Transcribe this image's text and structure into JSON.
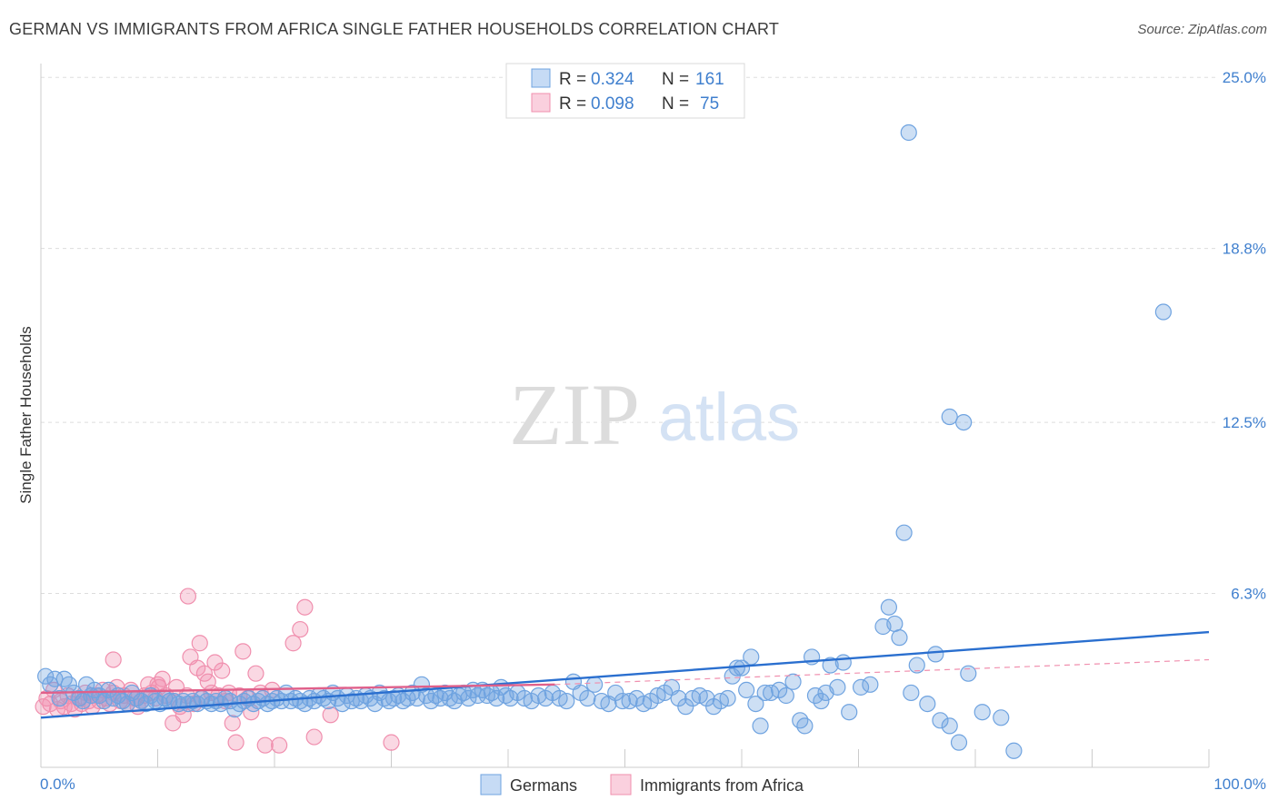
{
  "header": {
    "title": "GERMAN VS IMMIGRANTS FROM AFRICA SINGLE FATHER HOUSEHOLDS CORRELATION CHART",
    "source": "Source: ZipAtlas.com"
  },
  "colors": {
    "blue": "#6fa3e0",
    "blue_line": "#2a6fcf",
    "pink": "#f08fae",
    "pink_line": "#e0608a",
    "tick_text": "#3f7fce"
  },
  "chart_data": {
    "type": "scatter",
    "title": "GERMAN VS IMMIGRANTS FROM AFRICA SINGLE FATHER HOUSEHOLDS CORRELATION CHART",
    "xlabel": "",
    "ylabel": "Single Father Households",
    "xlim": [
      0,
      100
    ],
    "ylim": [
      0,
      25.5
    ],
    "x_tick_labels": [
      "0.0%",
      "100.0%"
    ],
    "y_ticks": [
      6.3,
      12.5,
      18.8,
      25.0
    ],
    "y_tick_labels": [
      "6.3%",
      "12.5%",
      "18.8%",
      "25.0%"
    ],
    "watermark": {
      "zip": "ZIP",
      "atlas": "atlas"
    },
    "legend": {
      "r_label": "R =",
      "n_label": "N =",
      "entries": [
        {
          "name": "Germans",
          "r": "0.324",
          "n": "161"
        },
        {
          "name": "Immigrants from Africa",
          "r": "0.098",
          "n": "75"
        }
      ]
    },
    "series": [
      {
        "name": "Germans",
        "trend": {
          "x": [
            0,
            100
          ],
          "y": [
            1.8,
            4.9
          ],
          "dashed": false
        },
        "points": [
          [
            0.4,
            3.3
          ],
          [
            0.8,
            3.0
          ],
          [
            1.2,
            3.2
          ],
          [
            1.6,
            2.5
          ],
          [
            2.0,
            3.2
          ],
          [
            2.4,
            3.0
          ],
          [
            2.8,
            2.7
          ],
          [
            3.3,
            2.5
          ],
          [
            3.6,
            2.4
          ],
          [
            3.9,
            3.0
          ],
          [
            4.3,
            2.6
          ],
          [
            4.6,
            2.8
          ],
          [
            5.0,
            2.6
          ],
          [
            5.4,
            2.4
          ],
          [
            5.8,
            2.8
          ],
          [
            6.2,
            2.5
          ],
          [
            6.6,
            2.6
          ],
          [
            7.0,
            2.4
          ],
          [
            7.4,
            2.3
          ],
          [
            7.8,
            2.7
          ],
          [
            8.2,
            2.5
          ],
          [
            8.6,
            2.4
          ],
          [
            9.0,
            2.3
          ],
          [
            9.4,
            2.6
          ],
          [
            9.8,
            2.4
          ],
          [
            10.2,
            2.3
          ],
          [
            10.6,
            2.5
          ],
          [
            11.0,
            2.4
          ],
          [
            11.4,
            2.4
          ],
          [
            11.8,
            2.3
          ],
          [
            12.2,
            2.4
          ],
          [
            12.6,
            2.3
          ],
          [
            13.0,
            2.4
          ],
          [
            13.4,
            2.3
          ],
          [
            13.8,
            2.5
          ],
          [
            14.2,
            2.4
          ],
          [
            14.6,
            2.3
          ],
          [
            15.0,
            2.4
          ],
          [
            15.4,
            2.3
          ],
          [
            15.8,
            2.5
          ],
          [
            16.2,
            2.4
          ],
          [
            16.6,
            2.1
          ],
          [
            17.0,
            2.3
          ],
          [
            17.4,
            2.4
          ],
          [
            17.8,
            2.5
          ],
          [
            18.2,
            2.3
          ],
          [
            18.6,
            2.4
          ],
          [
            19.0,
            2.5
          ],
          [
            19.4,
            2.3
          ],
          [
            19.8,
            2.4
          ],
          [
            20.2,
            2.5
          ],
          [
            20.6,
            2.4
          ],
          [
            21.0,
            2.7
          ],
          [
            21.4,
            2.4
          ],
          [
            21.8,
            2.5
          ],
          [
            22.2,
            2.4
          ],
          [
            22.6,
            2.3
          ],
          [
            23.0,
            2.5
          ],
          [
            23.4,
            2.4
          ],
          [
            23.8,
            2.6
          ],
          [
            24.2,
            2.5
          ],
          [
            24.6,
            2.4
          ],
          [
            25.0,
            2.7
          ],
          [
            25.4,
            2.5
          ],
          [
            25.8,
            2.3
          ],
          [
            26.2,
            2.6
          ],
          [
            26.6,
            2.4
          ],
          [
            27.0,
            2.5
          ],
          [
            27.4,
            2.4
          ],
          [
            27.8,
            2.6
          ],
          [
            28.2,
            2.5
          ],
          [
            28.6,
            2.3
          ],
          [
            29.0,
            2.7
          ],
          [
            29.4,
            2.5
          ],
          [
            29.8,
            2.4
          ],
          [
            30.2,
            2.5
          ],
          [
            30.6,
            2.6
          ],
          [
            31.0,
            2.4
          ],
          [
            31.4,
            2.5
          ],
          [
            31.8,
            2.7
          ],
          [
            32.2,
            2.5
          ],
          [
            32.6,
            3.0
          ],
          [
            33.0,
            2.6
          ],
          [
            33.4,
            2.4
          ],
          [
            33.8,
            2.6
          ],
          [
            34.2,
            2.5
          ],
          [
            34.6,
            2.7
          ],
          [
            35.0,
            2.5
          ],
          [
            35.4,
            2.4
          ],
          [
            35.8,
            2.6
          ],
          [
            36.2,
            2.7
          ],
          [
            36.6,
            2.5
          ],
          [
            37.0,
            2.8
          ],
          [
            37.4,
            2.6
          ],
          [
            37.8,
            2.8
          ],
          [
            38.2,
            2.6
          ],
          [
            38.6,
            2.7
          ],
          [
            39.0,
            2.5
          ],
          [
            39.4,
            2.9
          ],
          [
            39.8,
            2.6
          ],
          [
            40.2,
            2.5
          ],
          [
            40.8,
            2.7
          ],
          [
            41.4,
            2.5
          ],
          [
            42.0,
            2.4
          ],
          [
            42.6,
            2.6
          ],
          [
            43.2,
            2.5
          ],
          [
            43.8,
            2.7
          ],
          [
            44.4,
            2.5
          ],
          [
            45.0,
            2.4
          ],
          [
            45.6,
            3.1
          ],
          [
            46.2,
            2.7
          ],
          [
            46.8,
            2.5
          ],
          [
            47.4,
            3.0
          ],
          [
            48.0,
            2.4
          ],
          [
            48.6,
            2.3
          ],
          [
            49.2,
            2.7
          ],
          [
            49.8,
            2.4
          ],
          [
            50.4,
            2.4
          ],
          [
            51.0,
            2.5
          ],
          [
            51.6,
            2.3
          ],
          [
            52.2,
            2.4
          ],
          [
            52.8,
            2.6
          ],
          [
            53.4,
            2.7
          ],
          [
            54.0,
            2.9
          ],
          [
            54.6,
            2.5
          ],
          [
            55.2,
            2.2
          ],
          [
            55.8,
            2.5
          ],
          [
            56.4,
            2.6
          ],
          [
            57.0,
            2.5
          ],
          [
            57.6,
            2.2
          ],
          [
            58.2,
            2.4
          ],
          [
            58.8,
            2.5
          ],
          [
            59.2,
            3.3
          ],
          [
            59.6,
            3.6
          ],
          [
            60.0,
            3.6
          ],
          [
            60.4,
            2.8
          ],
          [
            60.8,
            4.0
          ],
          [
            61.2,
            2.3
          ],
          [
            61.6,
            1.5
          ],
          [
            62.0,
            2.7
          ],
          [
            62.5,
            2.7
          ],
          [
            63.2,
            2.8
          ],
          [
            63.8,
            2.6
          ],
          [
            64.4,
            3.1
          ],
          [
            65.0,
            1.7
          ],
          [
            65.4,
            1.5
          ],
          [
            66.0,
            4.0
          ],
          [
            66.3,
            2.6
          ],
          [
            66.8,
            2.4
          ],
          [
            67.2,
            2.7
          ],
          [
            67.6,
            3.7
          ],
          [
            68.2,
            2.9
          ],
          [
            68.7,
            3.8
          ],
          [
            69.2,
            2.0
          ],
          [
            70.2,
            2.9
          ],
          [
            71.0,
            3.0
          ],
          [
            72.1,
            5.1
          ],
          [
            72.6,
            5.8
          ],
          [
            73.1,
            5.2
          ],
          [
            73.5,
            4.7
          ],
          [
            74.5,
            2.7
          ],
          [
            75.0,
            3.7
          ],
          [
            75.9,
            2.3
          ],
          [
            76.6,
            4.1
          ],
          [
            77.0,
            1.7
          ],
          [
            77.8,
            1.5
          ],
          [
            78.6,
            0.9
          ],
          [
            79.4,
            3.4
          ],
          [
            80.6,
            2.0
          ],
          [
            82.2,
            1.8
          ],
          [
            83.3,
            0.6
          ],
          [
            74.3,
            23.0
          ],
          [
            73.9,
            8.5
          ],
          [
            96.1,
            16.5
          ],
          [
            77.8,
            12.7
          ],
          [
            79.0,
            12.5
          ]
        ]
      },
      {
        "name": "Immigrants from Africa",
        "trend": {
          "x": [
            0,
            44
          ],
          "y": [
            2.7,
            3.0
          ],
          "dashed": false
        },
        "trend_ext": {
          "x": [
            44,
            100
          ],
          "y": [
            3.0,
            3.9
          ],
          "dashed": true
        },
        "points": [
          [
            0.2,
            2.2
          ],
          [
            0.5,
            2.5
          ],
          [
            0.8,
            2.3
          ],
          [
            1.1,
            2.8
          ],
          [
            1.4,
            2.1
          ],
          [
            1.7,
            2.4
          ],
          [
            2.0,
            2.2
          ],
          [
            2.3,
            2.6
          ],
          [
            2.6,
            2.3
          ],
          [
            2.9,
            2.1
          ],
          [
            3.2,
            2.5
          ],
          [
            3.5,
            2.3
          ],
          [
            3.8,
            2.7
          ],
          [
            4.1,
            2.4
          ],
          [
            4.4,
            2.2
          ],
          [
            4.7,
            2.6
          ],
          [
            5.0,
            2.4
          ],
          [
            5.3,
            2.8
          ],
          [
            5.6,
            2.5
          ],
          [
            5.9,
            2.3
          ],
          [
            6.2,
            2.7
          ],
          [
            6.5,
            2.9
          ],
          [
            6.8,
            2.4
          ],
          [
            7.1,
            2.6
          ],
          [
            7.4,
            2.3
          ],
          [
            7.7,
            2.8
          ],
          [
            8.0,
            2.5
          ],
          [
            8.3,
            2.2
          ],
          [
            8.6,
            2.4
          ],
          [
            8.9,
            2.6
          ],
          [
            9.2,
            3.0
          ],
          [
            9.5,
            2.7
          ],
          [
            9.8,
            2.5
          ],
          [
            10.1,
            2.9
          ],
          [
            10.4,
            3.2
          ],
          [
            10.7,
            2.6
          ],
          [
            11.0,
            2.4
          ],
          [
            11.3,
            1.6
          ],
          [
            11.6,
            2.9
          ],
          [
            11.9,
            2.2
          ],
          [
            12.2,
            1.9
          ],
          [
            12.5,
            2.6
          ],
          [
            12.8,
            4.0
          ],
          [
            13.1,
            2.3
          ],
          [
            13.4,
            3.6
          ],
          [
            13.7,
            2.5
          ],
          [
            14.0,
            3.4
          ],
          [
            14.3,
            3.1
          ],
          [
            14.6,
            2.7
          ],
          [
            14.9,
            3.8
          ],
          [
            15.2,
            2.6
          ],
          [
            15.5,
            3.5
          ],
          [
            15.8,
            2.4
          ],
          [
            16.1,
            2.7
          ],
          [
            16.4,
            1.6
          ],
          [
            16.7,
            0.9
          ],
          [
            17.0,
            2.6
          ],
          [
            17.3,
            4.2
          ],
          [
            17.7,
            2.5
          ],
          [
            18.0,
            2.0
          ],
          [
            18.4,
            3.4
          ],
          [
            18.8,
            2.7
          ],
          [
            19.2,
            0.8
          ],
          [
            19.8,
            2.8
          ],
          [
            20.4,
            0.8
          ],
          [
            21.6,
            4.5
          ],
          [
            22.2,
            5.0
          ],
          [
            22.6,
            5.8
          ],
          [
            23.4,
            1.1
          ],
          [
            24.8,
            1.9
          ],
          [
            30.0,
            0.9
          ],
          [
            6.2,
            3.9
          ],
          [
            10.0,
            3.0
          ],
          [
            12.6,
            6.2
          ],
          [
            13.6,
            4.5
          ]
        ]
      }
    ]
  }
}
